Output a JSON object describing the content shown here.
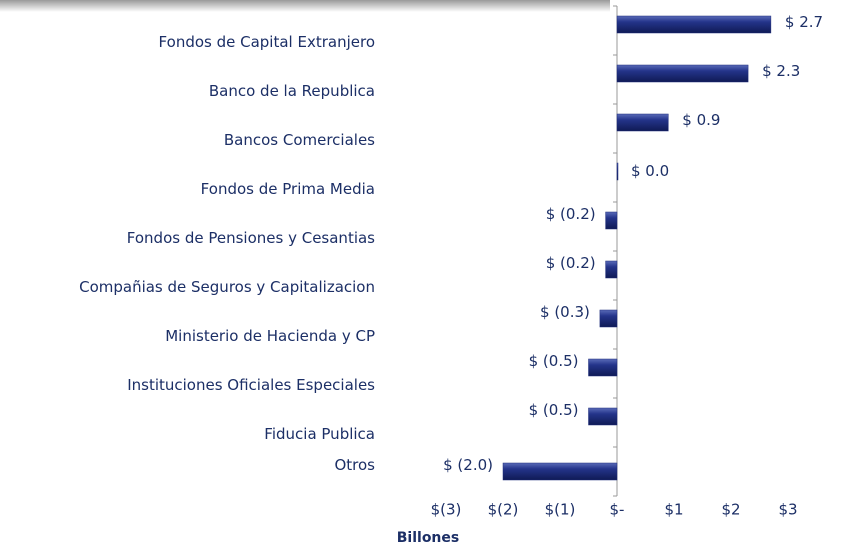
{
  "chart_data": {
    "type": "hbar",
    "categories": [
      "Fondos de Capital Extranjero",
      "Banco de la Republica",
      "Bancos Comerciales",
      "Fondos de Prima Media",
      "Fondos de Pensiones y Cesantias",
      "Compañias de Seguros y Capitalizacion",
      "Ministerio de Hacienda y CP",
      "Instituciones Oficiales Especiales",
      "Fiducia Publica",
      "Otros"
    ],
    "values": [
      2.7,
      2.3,
      0.9,
      0.0,
      -0.2,
      -0.2,
      -0.3,
      -0.5,
      -0.5,
      -2.0
    ],
    "value_labels": [
      "$ 2.7",
      "$ 2.3",
      "$ 0.9",
      "$ 0.0",
      "$ (0.2)",
      "$ (0.2)",
      "$ (0.3)",
      "$ (0.5)",
      "$ (0.5)",
      "$ (2.0)"
    ],
    "color": "#1f2d7a",
    "xlabel": "Billones",
    "xlim": [
      -3,
      3
    ],
    "xticks": [
      {
        "value": -3,
        "label": "$(3)"
      },
      {
        "value": -2,
        "label": "$(2)"
      },
      {
        "value": -1,
        "label": "$(1)"
      },
      {
        "value": 0,
        "label": "$-"
      },
      {
        "value": 1,
        "label": "$1"
      },
      {
        "value": 2,
        "label": "$2"
      },
      {
        "value": 3,
        "label": "$3"
      }
    ]
  }
}
